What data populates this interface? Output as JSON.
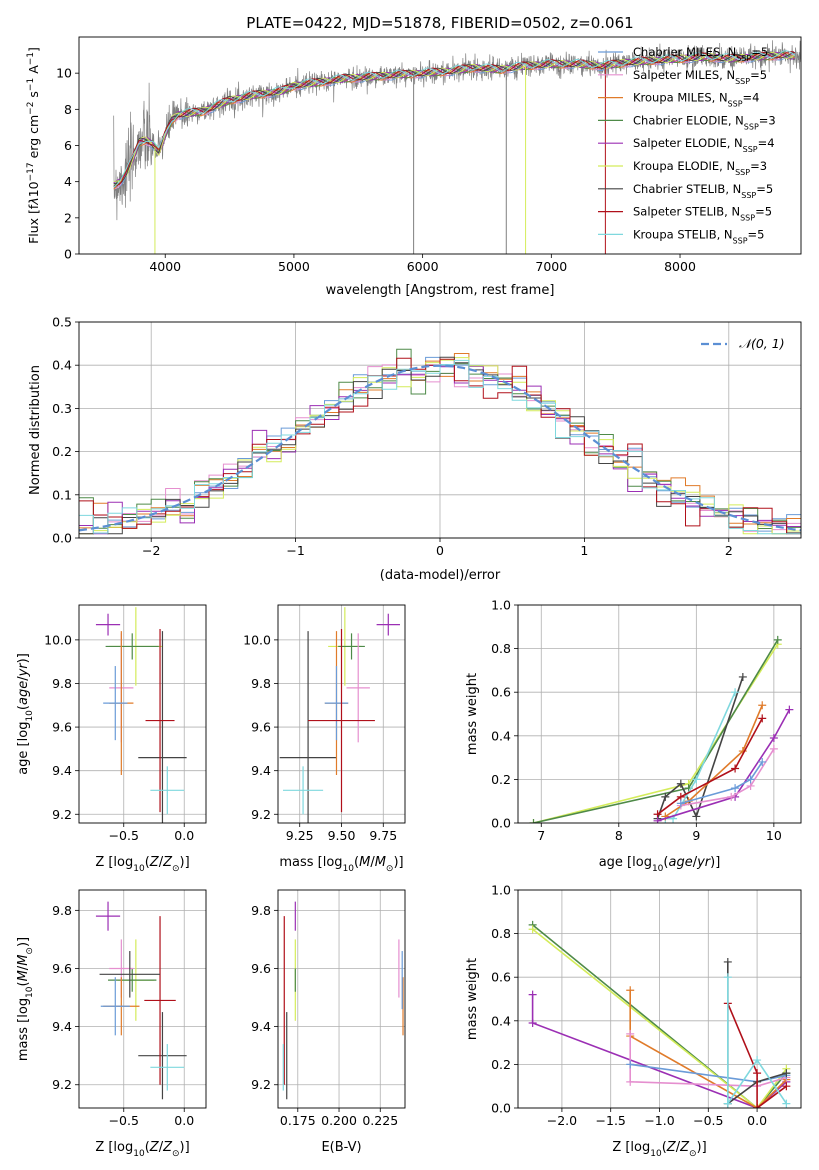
{
  "colors": {
    "Chabrier MILES": "#6a9bd8",
    "Salpeter MILES": "#e58fcf",
    "Kroupa MILES": "#e07b2a",
    "Chabrier ELODIE": "#4e8a48",
    "Salpeter ELODIE": "#9b2fb4",
    "Kroupa ELODIE": "#d4ec5a",
    "Chabrier STELIB": "#444444",
    "Salpeter STELIB": "#b0101a",
    "Kroupa STELIB": "#7fd8de",
    "data_spectrum": "#808080",
    "gaussian": "#5b8fd4"
  },
  "chart_data": [
    {
      "id": "spectrum",
      "type": "line",
      "title": "PLATE=0422, MJD=51878, FIBERID=0502, z=0.061",
      "xlabel": "wavelength [Angstrom, rest frame]",
      "ylabel_html": "Flux [f<tspan font-style='italic'>λ</tspan>10<tspan baseline-shift='super' font-size='9'>−17</tspan> erg cm<tspan baseline-shift='super' font-size='9'>−2</tspan> s<tspan baseline-shift='super' font-size='9'>−1</tspan> A<tspan baseline-shift='super' font-size='9'>−1</tspan>]",
      "xlim": [
        3330,
        8940
      ],
      "ylim": [
        0,
        12
      ],
      "xticks": [
        4000,
        5000,
        6000,
        7000,
        8000
      ],
      "yticks": [
        0,
        2,
        4,
        6,
        8,
        10
      ],
      "grid": false,
      "legend_position": "right",
      "legend": [
        {
          "model": "Chabrier MILES",
          "label": "Chabrier MILES, N",
          "n": 5
        },
        {
          "model": "Salpeter MILES",
          "label": "Salpeter MILES, N",
          "n": 5
        },
        {
          "model": "Kroupa MILES",
          "label": "Kroupa MILES, N",
          "n": 4
        },
        {
          "model": "Chabrier ELODIE",
          "label": "Chabrier ELODIE, N",
          "n": 3
        },
        {
          "model": "Salpeter ELODIE",
          "label": "Salpeter ELODIE, N",
          "n": 4
        },
        {
          "model": "Kroupa ELODIE",
          "label": "Kroupa ELODIE, N",
          "n": 3
        },
        {
          "model": "Chabrier STELIB",
          "label": "Chabrier STELIB, N",
          "n": 5
        },
        {
          "model": "Salpeter STELIB",
          "label": "Salpeter STELIB, N",
          "n": 5
        },
        {
          "model": "Kroupa STELIB",
          "label": "Kroupa STELIB, N",
          "n": 5
        }
      ],
      "legend_subscript": "SSP",
      "continuum": {
        "x": [
          3600,
          3650,
          3700,
          3750,
          3800,
          3850,
          3900,
          3950,
          4000,
          4050,
          4100,
          4200,
          4300,
          4400,
          4500,
          4700,
          4900,
          5000,
          5200,
          5400,
          5600,
          5800,
          6000,
          6200,
          6400,
          6600,
          6800,
          7000,
          7200,
          7400,
          7600,
          7800,
          8000,
          8200,
          8400,
          8600,
          8800,
          8940
        ],
        "y": [
          3.8,
          4.0,
          4.5,
          5.3,
          6.2,
          6.3,
          6.1,
          5.6,
          6.6,
          7.4,
          7.7,
          7.8,
          7.9,
          8.2,
          8.5,
          8.8,
          9.0,
          9.3,
          9.5,
          9.7,
          9.8,
          9.9,
          10.0,
          10.1,
          10.3,
          10.2,
          10.4,
          10.5,
          10.5,
          10.4,
          10.6,
          10.7,
          10.8,
          10.9,
          10.8,
          10.9,
          11.0,
          10.9
        ]
      },
      "spikes": [
        {
          "model": "Kroupa ELODIE",
          "x": 6800,
          "y": 0
        },
        {
          "model": "Salpeter STELIB",
          "x": 7420,
          "y": 0
        },
        {
          "model": "Kroupa ELODIE",
          "x": 3920,
          "y": 0
        },
        {
          "model": "data_spectrum",
          "x": 5930,
          "y": 0
        },
        {
          "model": "data_spectrum",
          "x": 6650,
          "y": 0
        }
      ]
    },
    {
      "id": "residuals",
      "type": "histogram",
      "xlabel": "(data-model)/error",
      "ylabel": "Normed distribution",
      "xlim": [
        -2.5,
        2.5
      ],
      "ylim": [
        0,
        0.5
      ],
      "xticks": [
        -2,
        -1,
        0,
        1,
        2
      ],
      "yticks": [
        0.0,
        0.1,
        0.2,
        0.3,
        0.4,
        0.5
      ],
      "xtick_labels": [
        "−2",
        "−1",
        "0",
        "1",
        "2"
      ],
      "ytick_labels": [
        "0.0",
        "0.1",
        "0.2",
        "0.3",
        "0.4",
        "0.5"
      ],
      "grid": true,
      "legend_position": "top-right",
      "legend_label": "𝒩(0, 1)",
      "bin_start": -2.5,
      "bin_width": 0.1,
      "models": [
        "Chabrier MILES",
        "Salpeter MILES",
        "Kroupa MILES",
        "Chabrier ELODIE",
        "Salpeter ELODIE",
        "Kroupa ELODIE",
        "Chabrier STELIB",
        "Salpeter STELIB",
        "Kroupa STELIB"
      ]
    },
    {
      "id": "z-age",
      "type": "errorbar",
      "xlabel_html": "Z [log<tspan baseline-shift='sub' font-size='9'>10</tspan>(<tspan font-style='italic'>Z</tspan>/<tspan font-style='italic'>Z</tspan><tspan baseline-shift='sub' font-size='9'>⊙</tspan>)]",
      "ylabel_html": "age  [log<tspan baseline-shift='sub' font-size='9'>10</tspan>(<tspan font-style='italic'>age</tspan>/<tspan font-style='italic'>yr</tspan>)]",
      "xlim": [
        -0.87,
        0.18
      ],
      "ylim": [
        9.16,
        10.16
      ],
      "xticks": [
        -0.5,
        0.0
      ],
      "xtick_labels": [
        "−0.5",
        "0.0"
      ],
      "yticks": [
        9.2,
        9.4,
        9.6,
        9.8,
        10.0
      ],
      "ytick_labels": [
        "9.2",
        "9.4",
        "9.6",
        "9.8",
        "10.0"
      ],
      "grid": true,
      "points": [
        {
          "model": "Salpeter ELODIE",
          "x": -0.63,
          "y": 10.07,
          "xerr": 0.1,
          "yerr": 0.05
        },
        {
          "model": "Kroupa ELODIE",
          "x": -0.4,
          "y": 9.97,
          "xerr": 0.22,
          "yerr": 0.18
        },
        {
          "model": "Chabrier ELODIE",
          "x": -0.43,
          "y": 9.97,
          "xerr": 0.22,
          "yerr": 0.06
        },
        {
          "model": "Chabrier STELIB",
          "x": -0.18,
          "y": 9.46,
          "xerr": 0.2,
          "yerr": 0.58
        },
        {
          "model": "Salpeter MILES",
          "x": -0.52,
          "y": 9.78,
          "xerr": 0.1,
          "yerr": 0.25
        },
        {
          "model": "Kroupa MILES",
          "x": -0.52,
          "y": 9.71,
          "xerr": 0.1,
          "yerr": 0.33
        },
        {
          "model": "Chabrier MILES",
          "x": -0.57,
          "y": 9.71,
          "xerr": 0.1,
          "yerr": 0.17
        },
        {
          "model": "Salpeter STELIB",
          "x": -0.2,
          "y": 9.63,
          "xerr": 0.12,
          "yerr": 0.42
        },
        {
          "model": "Kroupa STELIB",
          "x": -0.14,
          "y": 9.31,
          "xerr": 0.14,
          "yerr": 0.11
        }
      ]
    },
    {
      "id": "mass-age",
      "type": "errorbar",
      "xlabel_html": "mass [log<tspan baseline-shift='sub' font-size='9'>10</tspan>(<tspan font-style='italic'>M</tspan>/<tspan font-style='italic'>M</tspan><tspan baseline-shift='sub' font-size='9'>⊙</tspan>)]",
      "xlim": [
        9.12,
        9.88
      ],
      "ylim": [
        9.16,
        10.16
      ],
      "xticks": [
        9.25,
        9.5,
        9.75
      ],
      "xtick_labels": [
        "9.25",
        "9.50",
        "9.75"
      ],
      "yticks": [
        9.2,
        9.4,
        9.6,
        9.8,
        10.0
      ],
      "ytick_labels": [
        "9.2",
        "9.4",
        "9.6",
        "9.8",
        "10.0"
      ],
      "grid": true,
      "points": [
        {
          "model": "Salpeter ELODIE",
          "x": 9.78,
          "y": 10.07,
          "xerr": 0.07,
          "yerr": 0.05
        },
        {
          "model": "Kroupa ELODIE",
          "x": 9.52,
          "y": 9.97,
          "xerr": 0.1,
          "yerr": 0.18
        },
        {
          "model": "Chabrier ELODIE",
          "x": 9.56,
          "y": 9.97,
          "xerr": 0.08,
          "yerr": 0.06
        },
        {
          "model": "Chabrier STELIB",
          "x": 9.3,
          "y": 9.46,
          "xerr": 0.17,
          "yerr": 0.58
        },
        {
          "model": "Salpeter MILES",
          "x": 9.6,
          "y": 9.78,
          "xerr": 0.07,
          "yerr": 0.25
        },
        {
          "model": "Kroupa MILES",
          "x": 9.47,
          "y": 9.71,
          "xerr": 0.07,
          "yerr": 0.33
        },
        {
          "model": "Chabrier MILES",
          "x": 9.47,
          "y": 9.71,
          "xerr": 0.07,
          "yerr": 0.17
        },
        {
          "model": "Salpeter STELIB",
          "x": 9.5,
          "y": 9.63,
          "xerr": 0.2,
          "yerr": 0.42
        },
        {
          "model": "Kroupa STELIB",
          "x": 9.27,
          "y": 9.31,
          "xerr": 0.12,
          "yerr": 0.11
        }
      ]
    },
    {
      "id": "cum-age",
      "type": "line",
      "xlabel_html": "age  [log<tspan baseline-shift='sub' font-size='9'>10</tspan>(<tspan font-style='italic'>age</tspan>/<tspan font-style='italic'>yr</tspan>)]",
      "ylabel": "mass weight",
      "xlim": [
        6.7,
        10.35
      ],
      "ylim": [
        0,
        1
      ],
      "xticks": [
        7,
        8,
        9,
        10
      ],
      "xtick_labels": [
        "7",
        "8",
        "9",
        "10"
      ],
      "yticks": [
        0,
        0.2,
        0.4,
        0.6,
        0.8,
        1.0
      ],
      "ytick_labels": [
        "0.0",
        "0.2",
        "0.4",
        "0.6",
        "0.8",
        "1.0"
      ],
      "grid": true,
      "series": [
        {
          "model": "Kroupa ELODIE",
          "x": [
            6.9,
            8.9,
            10.05
          ],
          "y": [
            0.0,
            0.18,
            0.82
          ]
        },
        {
          "model": "Chabrier ELODIE",
          "x": [
            6.9,
            8.9,
            10.05
          ],
          "y": [
            0.0,
            0.16,
            0.84
          ]
        },
        {
          "model": "Chabrier STELIB",
          "x": [
            8.5,
            8.6,
            8.8,
            9.0,
            9.6
          ],
          "y": [
            0.02,
            0.12,
            0.18,
            0.03,
            0.67
          ]
        },
        {
          "model": "Kroupa STELIB",
          "x": [
            8.6,
            8.7,
            9.0,
            9.5
          ],
          "y": [
            0.02,
            0.02,
            0.2,
            0.6
          ]
        },
        {
          "model": "Kroupa MILES",
          "x": [
            8.6,
            8.9,
            9.6,
            9.85
          ],
          "y": [
            0.03,
            0.1,
            0.33,
            0.54
          ]
        },
        {
          "model": "Salpeter STELIB",
          "x": [
            8.5,
            8.8,
            9.5,
            9.85
          ],
          "y": [
            0.04,
            0.12,
            0.25,
            0.48
          ]
        },
        {
          "model": "Salpeter ELODIE",
          "x": [
            8.5,
            9.5,
            10.0,
            10.2
          ],
          "y": [
            0.01,
            0.12,
            0.39,
            0.52
          ]
        },
        {
          "model": "Salpeter MILES",
          "x": [
            8.8,
            9.45,
            9.7,
            10.0
          ],
          "y": [
            0.08,
            0.12,
            0.17,
            0.34
          ]
        },
        {
          "model": "Chabrier MILES",
          "x": [
            8.8,
            9.5,
            9.7,
            9.85
          ],
          "y": [
            0.09,
            0.16,
            0.2,
            0.28
          ]
        }
      ]
    },
    {
      "id": "z-mass",
      "type": "errorbar",
      "xlabel_html": "Z [log<tspan baseline-shift='sub' font-size='9'>10</tspan>(<tspan font-style='italic'>Z</tspan>/<tspan font-style='italic'>Z</tspan><tspan baseline-shift='sub' font-size='9'>⊙</tspan>)]",
      "ylabel_html": "mass [log<tspan baseline-shift='sub' font-size='9'>10</tspan>(<tspan font-style='italic'>M</tspan>/<tspan font-style='italic'>M</tspan><tspan baseline-shift='sub' font-size='9'>⊙</tspan>)]",
      "xlim": [
        -0.87,
        0.18
      ],
      "ylim": [
        9.12,
        9.87
      ],
      "xticks": [
        -0.5,
        0.0
      ],
      "xtick_labels": [
        "−0.5",
        "0.0"
      ],
      "yticks": [
        9.2,
        9.4,
        9.6,
        9.8
      ],
      "ytick_labels": [
        "9.2",
        "9.4",
        "9.6",
        "9.8"
      ],
      "grid": true,
      "points": [
        {
          "model": "Salpeter ELODIE",
          "x": -0.63,
          "y": 9.78,
          "xerr": 0.1,
          "yerr": 0.05
        },
        {
          "model": "Kroupa ELODIE",
          "x": -0.4,
          "y": 9.56,
          "xerr": 0.15,
          "yerr": 0.14
        },
        {
          "model": "Chabrier ELODIE",
          "x": -0.43,
          "y": 9.56,
          "xerr": 0.2,
          "yerr": 0.04
        },
        {
          "model": "Chabrier STELIB",
          "x": -0.18,
          "y": 9.3,
          "xerr": 0.2,
          "yerr": 0.15
        },
        {
          "model": "Salpeter MILES",
          "x": -0.52,
          "y": 9.6,
          "xerr": 0.1,
          "yerr": 0.1
        },
        {
          "model": "Kroupa MILES",
          "x": -0.52,
          "y": 9.47,
          "xerr": 0.15,
          "yerr": 0.1
        },
        {
          "model": "Chabrier MILES",
          "x": -0.57,
          "y": 9.47,
          "xerr": 0.12,
          "yerr": 0.1
        },
        {
          "model": "Salpeter STELIB",
          "x": -0.2,
          "y": 9.49,
          "xerr": 0.13,
          "yerr": 0.29
        },
        {
          "model": "Kroupa STELIB",
          "x": -0.14,
          "y": 9.26,
          "xerr": 0.14,
          "yerr": 0.08
        },
        {
          "model": "Chabrier STELIB",
          "x": -0.45,
          "y": 9.58,
          "xerr": 0.25,
          "yerr": 0.08
        }
      ]
    },
    {
      "id": "ebv-mass",
      "type": "errorbar",
      "xlabel": "E(B-V)",
      "xlim": [
        0.163,
        0.24
      ],
      "ylim": [
        9.12,
        9.87
      ],
      "xticks": [
        0.175,
        0.2,
        0.225
      ],
      "xtick_labels": [
        "0.175",
        "0.200",
        "0.225"
      ],
      "yticks": [
        9.2,
        9.4,
        9.6,
        9.8
      ],
      "ytick_labels": [
        "9.2",
        "9.4",
        "9.6",
        "9.8"
      ],
      "grid": true,
      "points": [
        {
          "model": "Salpeter ELODIE",
          "x": 0.1735,
          "y": 9.78,
          "xerr": 0,
          "yerr": 0.05
        },
        {
          "model": "Kroupa ELODIE",
          "x": 0.1735,
          "y": 9.56,
          "xerr": 0,
          "yerr": 0.14
        },
        {
          "model": "Chabrier STELIB",
          "x": 0.1683,
          "y": 9.3,
          "xerr": 0,
          "yerr": 0.15
        },
        {
          "model": "Salpeter STELIB",
          "x": 0.1668,
          "y": 9.49,
          "xerr": 0,
          "yerr": 0.29
        },
        {
          "model": "Kroupa STELIB",
          "x": 0.1662,
          "y": 9.26,
          "xerr": 0,
          "yerr": 0.08
        },
        {
          "model": "Chabrier ELODIE",
          "x": 0.1735,
          "y": 9.56,
          "xerr": 0,
          "yerr": 0.04
        },
        {
          "model": "Salpeter MILES",
          "x": 0.2363,
          "y": 9.6,
          "xerr": 0,
          "yerr": 0.1
        },
        {
          "model": "Kroupa MILES",
          "x": 0.2388,
          "y": 9.47,
          "xerr": 0,
          "yerr": 0.1
        },
        {
          "model": "Chabrier MILES",
          "x": 0.2383,
          "y": 9.56,
          "xerr": 0,
          "yerr": 0.1
        }
      ]
    },
    {
      "id": "cum-z",
      "type": "line",
      "xlabel_html": "Z [log<tspan baseline-shift='sub' font-size='9'>10</tspan>(<tspan font-style='italic'>Z</tspan>/<tspan font-style='italic'>Z</tspan><tspan baseline-shift='sub' font-size='9'>⊙</tspan>)]",
      "ylabel": "mass weight",
      "xlim": [
        -2.45,
        0.45
      ],
      "ylim": [
        0,
        1
      ],
      "xticks": [
        -2.0,
        -1.5,
        -1.0,
        -0.5,
        0.0
      ],
      "xtick_labels": [
        "−2.0",
        "−1.5",
        "−1.0",
        "−0.5",
        "0.0"
      ],
      "yticks": [
        0,
        0.2,
        0.4,
        0.6,
        0.8,
        1.0
      ],
      "ytick_labels": [
        "0.0",
        "0.2",
        "0.4",
        "0.6",
        "0.8",
        "1.0"
      ],
      "grid": true,
      "series": [
        {
          "model": "Chabrier ELODIE",
          "x": [
            -2.3,
            0.0,
            0.3
          ],
          "y": [
            0.84,
            0.0,
            0.16
          ]
        },
        {
          "model": "Kroupa ELODIE",
          "x": [
            -2.3,
            0.0,
            0.3
          ],
          "y": [
            0.82,
            0.0,
            0.18
          ]
        },
        {
          "model": "Salpeter ELODIE",
          "x": [
            -2.3,
            -2.3,
            0.0,
            0.3
          ],
          "y": [
            0.52,
            0.39,
            0.0,
            0.12
          ]
        },
        {
          "model": "Kroupa MILES",
          "x": [
            -1.3,
            -1.3,
            0.0,
            0.3
          ],
          "y": [
            0.54,
            0.33,
            0.0,
            0.13
          ]
        },
        {
          "model": "Salpeter MILES",
          "x": [
            -1.3,
            -1.3,
            0.0,
            0.3
          ],
          "y": [
            0.34,
            0.12,
            0.1,
            0.14
          ]
        },
        {
          "model": "Chabrier MILES",
          "x": [
            -1.3,
            0.0,
            0.3
          ],
          "y": [
            0.2,
            0.12,
            0.15
          ]
        },
        {
          "model": "Chabrier STELIB",
          "x": [
            -0.3,
            -0.3,
            0.0,
            0.3
          ],
          "y": [
            0.67,
            0.02,
            0.12,
            0.16
          ]
        },
        {
          "model": "Salpeter STELIB",
          "x": [
            -0.3,
            0.0,
            0.0,
            0.3
          ],
          "y": [
            0.48,
            0.16,
            0.0,
            0.1
          ]
        },
        {
          "model": "Kroupa STELIB",
          "x": [
            -0.3,
            -0.3,
            0.0,
            0.3
          ],
          "y": [
            0.6,
            0.02,
            0.22,
            0.02
          ]
        }
      ]
    }
  ]
}
